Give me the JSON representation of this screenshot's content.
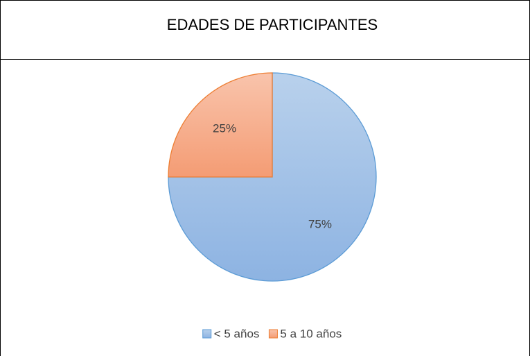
{
  "chart_data": {
    "type": "pie",
    "title": "EDADES DE PARTICIPANTES",
    "categories": [
      "< 5 años",
      "5 a 10 años"
    ],
    "values": [
      75,
      25
    ],
    "value_labels": [
      "75%",
      "25%"
    ],
    "colors": [
      "#9dbfe8",
      "#f6ae8e"
    ],
    "stroke_colors": [
      "#5b9bd5",
      "#ed7d31"
    ],
    "legend": "bottom"
  }
}
